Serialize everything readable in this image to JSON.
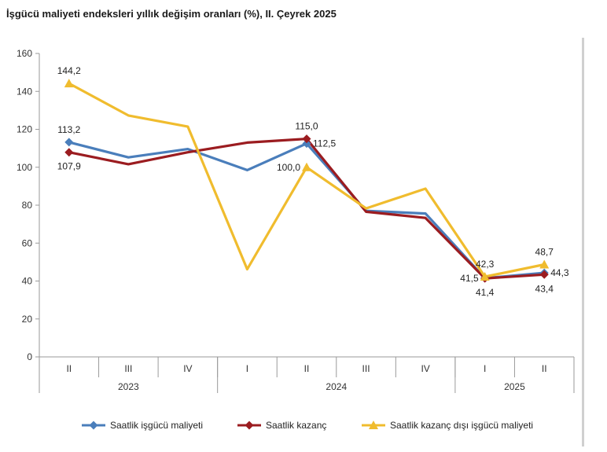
{
  "chart_data": {
    "type": "line",
    "title": "İşgücü maliyeti endeksleri yıllık değişim oranları (%), II. Çeyrek 2025",
    "xlabel": "",
    "ylabel": "",
    "ylim": [
      0,
      160
    ],
    "yticks": [
      "0",
      "20",
      "40",
      "60",
      "80",
      "100",
      "120",
      "140",
      "160"
    ],
    "grid": false,
    "legend_position": "bottom",
    "categories": [
      "II",
      "III",
      "IV",
      "I",
      "II",
      "III",
      "IV",
      "I",
      "II"
    ],
    "year_groups": [
      {
        "label": "2023",
        "start": 0,
        "end": 2
      },
      {
        "label": "2024",
        "start": 3,
        "end": 6
      },
      {
        "label": "2025",
        "start": 7,
        "end": 8
      }
    ],
    "series": [
      {
        "name": "Saatlik işgücü maliyeti",
        "color": "#4a7ebb",
        "marker": "diamond",
        "values": [
          113.2,
          105.2,
          109.6,
          98.5,
          112.5,
          77.0,
          75.6,
          41.5,
          44.3
        ]
      },
      {
        "name": "Saatlik kazanç",
        "color": "#9b1c20",
        "marker": "diamond",
        "values": [
          107.9,
          101.6,
          107.9,
          113.0,
          115.0,
          76.5,
          73.3,
          41.4,
          43.4
        ]
      },
      {
        "name": "Saatlik kazanç dışı işgücü maliyeti",
        "color": "#f0bc2e",
        "marker": "triangle",
        "values": [
          144.2,
          127.3,
          121.4,
          46.2,
          100.0,
          78.3,
          88.7,
          42.3,
          48.7
        ]
      }
    ],
    "annotations": [
      {
        "text": "144,2",
        "series": 2,
        "index": 0,
        "pos": "above"
      },
      {
        "text": "113,2",
        "series": 0,
        "index": 0,
        "pos": "above"
      },
      {
        "text": "107,9",
        "series": 1,
        "index": 0,
        "pos": "below"
      },
      {
        "text": "115,0",
        "series": 1,
        "index": 4,
        "pos": "above"
      },
      {
        "text": "112,5",
        "series": 0,
        "index": 4,
        "pos": "right"
      },
      {
        "text": "100,0",
        "series": 2,
        "index": 4,
        "pos": "left"
      },
      {
        "text": "42,3",
        "series": 2,
        "index": 7,
        "pos": "above"
      },
      {
        "text": "41,5",
        "series": 0,
        "index": 7,
        "pos": "left"
      },
      {
        "text": "41,4",
        "series": 1,
        "index": 7,
        "pos": "below"
      },
      {
        "text": "48,7",
        "series": 2,
        "index": 8,
        "pos": "above"
      },
      {
        "text": "44,3",
        "series": 0,
        "index": 8,
        "pos": "right"
      },
      {
        "text": "43,4",
        "series": 1,
        "index": 8,
        "pos": "below"
      }
    ]
  }
}
